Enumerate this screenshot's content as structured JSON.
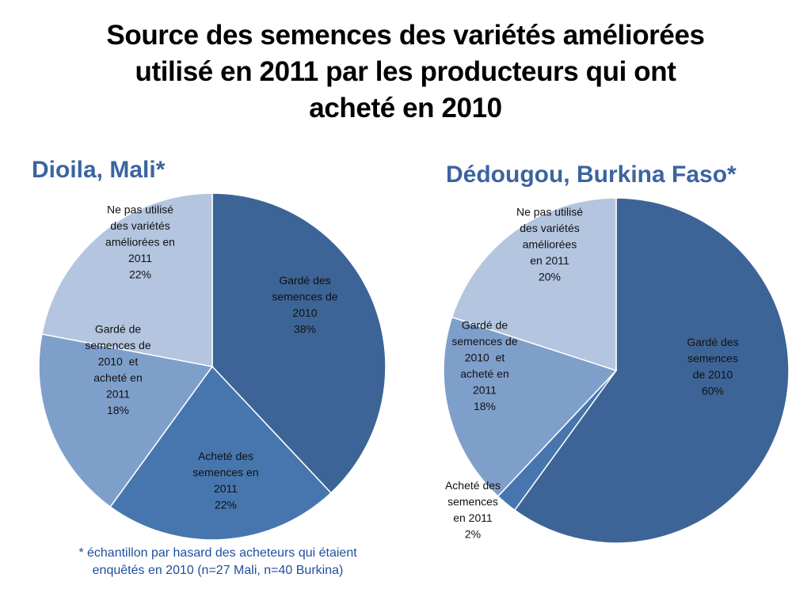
{
  "title": "Source des semences des variétés améliorées\nutilisé en 2011 par les producteurs qui ont\nacheté en 2010",
  "colors": {
    "title_text": "#000000",
    "chart_title": "#3B64A0",
    "footnote": "#1F4E9E",
    "slice_text": "#111111",
    "slice_outline": "#ffffff"
  },
  "footnote": "* échantillon par hasard des acheteurs qui étaient\nenquêtés en 2010 (n=27 Mali, n=40 Burkina)",
  "chart_data": [
    {
      "type": "pie",
      "title": "Dioila, Mali*",
      "slices": [
        {
          "label": "Gardé des semences de 2010",
          "value": 38,
          "value_label": "38%",
          "label_lines": [
            "Gardé des",
            "semences de",
            "2010",
            "38%"
          ],
          "color": "#3D6496"
        },
        {
          "label": "Acheté des semences en 2011",
          "value": 22,
          "value_label": "22%",
          "label_lines": [
            "Acheté des",
            "semences en",
            "2011",
            "22%"
          ],
          "color": "#4776AE"
        },
        {
          "label": "Gardé de semences de 2010 et acheté en 2011",
          "value": 18,
          "value_label": "18%",
          "label_lines": [
            "Gardé de",
            "semences de",
            "2010  et",
            "acheté en",
            "2011",
            "18%"
          ],
          "color": "#7F9FCB"
        },
        {
          "label": "Ne pas utilisé des variétés améliorées en 2011",
          "value": 22,
          "value_label": "22%",
          "label_lines": [
            "Ne pas utilisé",
            "des variétés",
            "améliorées en",
            "2011",
            "22%"
          ],
          "color": "#B4C5E0"
        }
      ]
    },
    {
      "type": "pie",
      "title": "Dédougou, Burkina Faso*",
      "slices": [
        {
          "label": "Gardé des semences de 2010",
          "value": 60,
          "value_label": "60%",
          "label_lines": [
            "Gardé des",
            "semences",
            "de 2010",
            "60%"
          ],
          "color": "#3D6496"
        },
        {
          "label": "Acheté des semences en 2011",
          "value": 2,
          "value_label": "2%",
          "label_lines": [
            "Acheté des",
            "semences",
            "en 2011",
            "2%"
          ],
          "color": "#4776AE"
        },
        {
          "label": "Gardé de semences de 2010 et acheté en 2011",
          "value": 18,
          "value_label": "18%",
          "label_lines": [
            "Gardé de",
            "semences de",
            "2010  et",
            "acheté en",
            "2011",
            "18%"
          ],
          "color": "#7F9FCB"
        },
        {
          "label": "Ne pas utilisé des variétés améliorées en 2011",
          "value": 20,
          "value_label": "20%",
          "label_lines": [
            "Ne pas utilisé",
            "des variétés",
            "améliorées",
            "en 2011",
            "20%"
          ],
          "color": "#B4C5E0"
        }
      ]
    }
  ]
}
